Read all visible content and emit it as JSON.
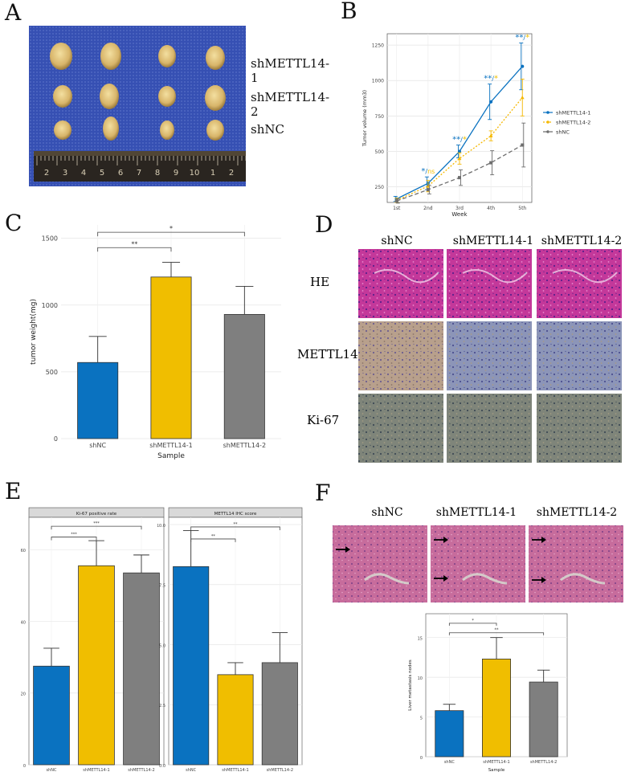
{
  "panel_labels": {
    "a": "A",
    "b": "B",
    "c": "C",
    "d": "D",
    "e": "E",
    "f": "F"
  },
  "panel_a": {
    "row_labels": [
      "shMETTL14-1",
      "shMETTL14-2",
      "shNC"
    ],
    "ruler_numbers": [
      "2",
      "3",
      "4",
      "5",
      "6",
      "7",
      "8",
      "9",
      "10",
      "1",
      "2"
    ]
  },
  "panel_d": {
    "col_labels": [
      "shNC",
      "shMETTL14-1",
      "shMETTL14-2"
    ],
    "row_labels": [
      "HE",
      "METTL14",
      "Ki-67"
    ]
  },
  "panel_f": {
    "col_labels": [
      "shNC",
      "shMETTL14-1",
      "shMETTL14-2"
    ]
  },
  "colors": {
    "blue": "#0a72c0",
    "yellow": "#f0be00",
    "gray": "#7f7f7f",
    "dash_gray": "#6e6e6e",
    "dash_yellow": "#f5b800"
  },
  "chart_data": [
    {
      "id": "B",
      "type": "line",
      "title": "",
      "xlabel": "Week",
      "ylabel": "Tumor volume (mm3)",
      "categories": [
        "1st",
        "2nd",
        "3rd",
        "4th",
        "5th"
      ],
      "yticks": [
        "250",
        "500",
        "750",
        "1000",
        "1250"
      ],
      "ylim": [
        140,
        1330
      ],
      "series": [
        {
          "name": "shMETTL14-1",
          "values": [
            165,
            275,
            500,
            850,
            1100
          ],
          "err": [
            18,
            45,
            45,
            125,
            165
          ],
          "style": "solid"
        },
        {
          "name": "shMETTL14-2",
          "values": [
            155,
            255,
            450,
            610,
            880
          ],
          "err": [
            15,
            40,
            40,
            35,
            130
          ],
          "style": "dotted"
        },
        {
          "name": "shNC",
          "values": [
            150,
            230,
            315,
            420,
            545
          ],
          "err": [
            15,
            30,
            55,
            85,
            155
          ],
          "style": "dashed"
        }
      ],
      "annotations": [
        {
          "x": "2nd",
          "stars": "*",
          "sep": "/",
          "sig": "ns"
        },
        {
          "x": "3rd",
          "stars": "**",
          "sep": "/",
          "sig": "*"
        },
        {
          "x": "4th",
          "stars": "**",
          "sep": "/",
          "sig": "*"
        },
        {
          "x": "5th",
          "stars": "**",
          "sep": "/",
          "sig": "*"
        }
      ]
    },
    {
      "id": "C",
      "type": "bar",
      "title": "",
      "xlabel": "Sample",
      "ylabel": "tumor weight(mg)",
      "categories": [
        "shNC",
        "shMETTL14-1",
        "shMETTL14-2"
      ],
      "values": [
        570,
        1210,
        930
      ],
      "err": [
        195,
        110,
        210
      ],
      "yticks": [
        "0",
        "500",
        "1000",
        "1500"
      ],
      "ylim": [
        0,
        1600
      ],
      "brackets": [
        {
          "from": 0,
          "to": 1,
          "label": "**",
          "y": 1430
        },
        {
          "from": 0,
          "to": 2,
          "label": "*",
          "y": 1545
        }
      ]
    },
    {
      "id": "E1",
      "type": "bar",
      "title": "Ki-67 positive rate",
      "xlabel": "",
      "ylabel": "",
      "categories": [
        "shNC",
        "shMETTL14-1",
        "shMETTL14-2"
      ],
      "values": [
        27.5,
        55.5,
        53.5
      ],
      "err": [
        5,
        7,
        5
      ],
      "yticks": [
        "0",
        "20",
        "40",
        "60"
      ],
      "ylim": [
        0,
        69
      ],
      "brackets": [
        {
          "from": 0,
          "to": 1,
          "label": "***",
          "y": 63.5
        },
        {
          "from": 0,
          "to": 2,
          "label": "***",
          "y": 66.5
        }
      ]
    },
    {
      "id": "E2",
      "type": "bar",
      "title": "METTL14 IHC score",
      "xlabel": "",
      "ylabel": "",
      "categories": [
        "shNC",
        "shMETTL14-1",
        "shMETTL14-2"
      ],
      "values": [
        8.25,
        3.75,
        4.25
      ],
      "err": [
        1.5,
        0.5,
        1.25
      ],
      "yticks": [
        "0.0",
        "2.5",
        "5.0",
        "7.5",
        "10.0"
      ],
      "ylim": [
        0,
        10.3
      ],
      "brackets": [
        {
          "from": 0,
          "to": 1,
          "label": "**",
          "y": 9.4
        },
        {
          "from": 0,
          "to": 2,
          "label": "**",
          "y": 9.9
        }
      ]
    },
    {
      "id": "F",
      "type": "bar",
      "title": "",
      "xlabel": "Sample",
      "ylabel": "Liver metastasis nodes",
      "categories": [
        "shNC",
        "shMETTL14-1",
        "shMETTL14-2"
      ],
      "values": [
        5.8,
        12.3,
        9.4
      ],
      "err": [
        0.8,
        2.7,
        1.5
      ],
      "yticks": [
        "0",
        "5",
        "10",
        "15"
      ],
      "ylim": [
        0,
        18
      ],
      "brackets": [
        {
          "from": 0,
          "to": 1,
          "label": "*",
          "y": 16.8
        },
        {
          "from": 0,
          "to": 2,
          "label": "**",
          "y": 15.6
        }
      ]
    }
  ]
}
